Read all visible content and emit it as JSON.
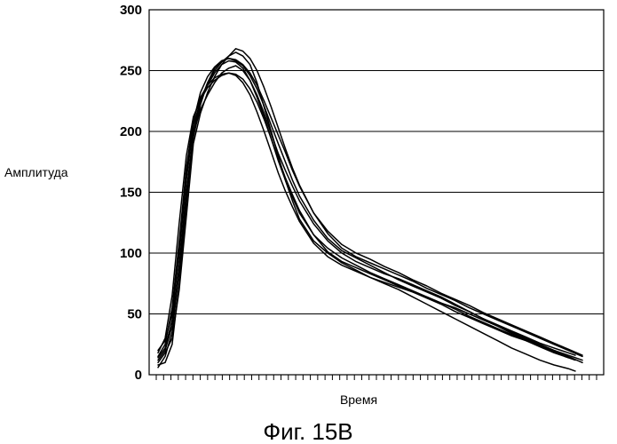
{
  "chart_data": {
    "type": "line",
    "title": "",
    "xlabel": "Время",
    "ylabel": "Амплитуда",
    "caption": "Фиг. 15B",
    "ylim": [
      0,
      300
    ],
    "xlim": [
      0,
      60
    ],
    "yticks": [
      0,
      50,
      100,
      150,
      200,
      250,
      300
    ],
    "ytick_labels": [
      "0",
      "50",
      "100",
      "150",
      "200",
      "250",
      "300"
    ],
    "x_minor_tick_count": 60,
    "grid": {
      "horizontal": true,
      "vertical": false
    },
    "legend": "none",
    "series": [
      {
        "x": [
          0,
          1,
          2,
          3,
          4,
          5,
          6,
          7,
          8,
          9,
          10,
          11,
          12,
          13,
          14,
          15,
          16,
          17,
          18,
          19,
          20,
          22,
          24,
          26,
          28,
          30,
          32,
          34,
          36,
          38,
          40,
          42,
          44,
          46,
          48,
          50,
          52,
          54,
          56,
          58,
          59
        ],
        "values": [
          10,
          18,
          30,
          70,
          130,
          190,
          215,
          232,
          245,
          255,
          262,
          265,
          262,
          255,
          240,
          220,
          200,
          180,
          160,
          143,
          128,
          110,
          100,
          92,
          86,
          80,
          75,
          70,
          64,
          58,
          52,
          46,
          40,
          34,
          28,
          22,
          17,
          12,
          8,
          5,
          3
        ]
      },
      {
        "x": [
          0,
          1,
          2,
          3,
          4,
          5,
          6,
          7,
          8,
          9,
          10,
          11,
          12,
          13,
          14,
          15,
          16,
          17,
          18,
          19,
          20,
          22,
          24,
          26,
          28,
          30,
          32,
          34,
          36,
          38,
          40,
          42,
          44,
          46,
          48,
          50,
          52,
          54,
          56,
          58,
          60
        ],
        "values": [
          8,
          10,
          25,
          75,
          140,
          200,
          225,
          240,
          250,
          257,
          262,
          268,
          266,
          260,
          250,
          236,
          220,
          203,
          186,
          170,
          156,
          133,
          118,
          107,
          100,
          95,
          89,
          84,
          78,
          73,
          67,
          62,
          57,
          51,
          46,
          41,
          36,
          31,
          26,
          21,
          16
        ]
      },
      {
        "x": [
          0,
          1,
          2,
          3,
          4,
          5,
          6,
          7,
          8,
          9,
          10,
          11,
          12,
          13,
          14,
          15,
          16,
          17,
          18,
          19,
          20,
          22,
          24,
          26,
          28,
          30,
          32,
          34,
          36,
          38,
          40,
          42,
          44,
          46,
          48,
          50,
          52,
          54,
          56,
          58,
          59
        ],
        "values": [
          12,
          20,
          40,
          90,
          150,
          198,
          218,
          230,
          240,
          248,
          252,
          254,
          250,
          242,
          230,
          215,
          198,
          182,
          168,
          155,
          143,
          124,
          110,
          100,
          93,
          88,
          83,
          79,
          74,
          69,
          64,
          58,
          52,
          46,
          40,
          34,
          29,
          24,
          19,
          14,
          12
        ]
      },
      {
        "x": [
          0,
          1,
          2,
          3,
          4,
          5,
          6,
          7,
          8,
          9,
          10,
          11,
          12,
          13,
          14,
          15,
          16,
          17,
          18,
          19,
          20,
          22,
          24,
          26,
          28,
          30,
          32,
          34,
          36,
          38,
          40,
          42,
          44,
          46,
          48,
          50,
          52,
          54,
          56,
          58,
          60
        ],
        "values": [
          15,
          25,
          55,
          110,
          170,
          210,
          228,
          238,
          244,
          247,
          248,
          246,
          240,
          230,
          216,
          200,
          183,
          166,
          151,
          138,
          126,
          108,
          97,
          90,
          85,
          80,
          76,
          72,
          68,
          64,
          59,
          55,
          50,
          45,
          40,
          35,
          30,
          25,
          20,
          15,
          10
        ]
      },
      {
        "x": [
          0,
          1,
          2,
          3,
          4,
          5,
          6,
          7,
          8,
          9,
          10,
          11,
          12,
          13,
          14,
          15,
          16,
          17,
          18,
          19,
          20,
          22,
          24,
          26,
          28,
          30,
          32,
          34,
          36,
          38,
          40,
          42,
          44,
          46,
          48,
          50,
          52,
          54,
          56,
          58
        ],
        "values": [
          20,
          28,
          50,
          100,
          160,
          205,
          225,
          238,
          248,
          255,
          258,
          257,
          252,
          242,
          228,
          212,
          194,
          176,
          160,
          146,
          133,
          115,
          104,
          96,
          90,
          84,
          79,
          74,
          69,
          64,
          59,
          54,
          48,
          43,
          38,
          33,
          28,
          23,
          18,
          14
        ]
      },
      {
        "x": [
          0,
          1,
          2,
          3,
          4,
          5,
          6,
          7,
          8,
          9,
          10,
          11,
          12,
          13,
          14,
          15,
          16,
          17,
          18,
          19,
          20,
          22,
          24,
          26,
          28,
          30,
          32,
          34,
          36,
          38,
          40,
          42,
          44,
          46,
          48,
          50,
          52,
          54,
          56,
          58,
          60
        ],
        "values": [
          18,
          30,
          65,
          125,
          180,
          212,
          226,
          236,
          242,
          246,
          248,
          247,
          243,
          235,
          224,
          210,
          194,
          178,
          162,
          148,
          135,
          115,
          101,
          93,
          88,
          83,
          78,
          73,
          68,
          63,
          58,
          52,
          47,
          42,
          37,
          32,
          28,
          24,
          20,
          16,
          12
        ]
      },
      {
        "x": [
          0,
          1,
          2,
          3,
          4,
          5,
          6,
          7,
          8,
          9,
          10,
          11,
          12,
          13,
          14,
          15,
          16,
          17,
          18,
          19,
          20,
          22,
          24,
          26,
          28,
          30,
          32,
          34,
          36,
          38,
          40,
          42,
          44,
          46,
          48,
          50,
          52,
          54,
          56,
          58,
          59
        ],
        "values": [
          6,
          15,
          35,
          85,
          145,
          195,
          222,
          240,
          252,
          258,
          260,
          258,
          254,
          246,
          235,
          221,
          205,
          190,
          175,
          160,
          147,
          127,
          112,
          102,
          96,
          90,
          84,
          78,
          73,
          68,
          63,
          57,
          52,
          46,
          41,
          36,
          31,
          26,
          22,
          18,
          16
        ]
      },
      {
        "x": [
          0,
          1,
          2,
          3,
          4,
          5,
          6,
          7,
          8,
          9,
          10,
          11,
          12,
          13,
          14,
          15,
          16,
          17,
          18,
          19,
          20,
          22,
          24,
          26,
          28,
          30,
          32,
          34,
          36,
          38,
          40,
          42,
          44,
          46,
          48,
          50,
          52,
          54,
          56,
          58,
          60
        ],
        "values": [
          14,
          22,
          45,
          105,
          165,
          208,
          232,
          245,
          253,
          258,
          260,
          259,
          255,
          248,
          238,
          225,
          211,
          197,
          183,
          168,
          155,
          133,
          116,
          104,
          97,
          92,
          87,
          82,
          77,
          71,
          66,
          61,
          55,
          50,
          45,
          40,
          35,
          30,
          25,
          20,
          15
        ]
      }
    ]
  }
}
